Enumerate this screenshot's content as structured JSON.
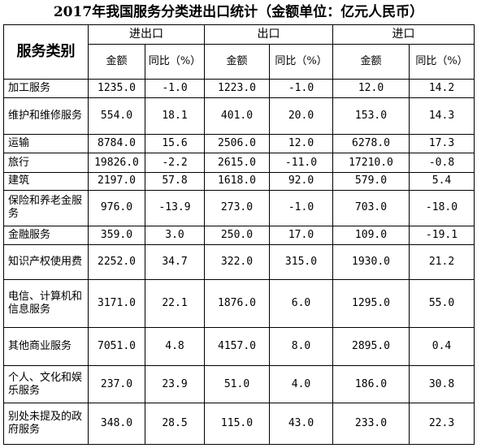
{
  "title": "2017年我国服务分类进出口统计（金额单位：亿元人民币）",
  "header": {
    "category": "服务类别",
    "groups": [
      "进出口",
      "出口",
      "进口"
    ],
    "amount": "金额",
    "yoy": "同比（%）"
  },
  "rows": [
    {
      "category": "加工服务",
      "total_amount": "1235.0",
      "total_yoy": "-1.0",
      "export_amount": "1223.0",
      "export_yoy": "-1.0",
      "import_amount": "12.0",
      "import_yoy": "14.2"
    },
    {
      "category": "维护和维修服务",
      "total_amount": "554.0",
      "total_yoy": "18.1",
      "export_amount": "401.0",
      "export_yoy": "20.0",
      "import_amount": "153.0",
      "import_yoy": "14.3"
    },
    {
      "category": "运输",
      "total_amount": "8784.0",
      "total_yoy": "15.6",
      "export_amount": "2506.0",
      "export_yoy": "12.0",
      "import_amount": "6278.0",
      "import_yoy": "17.3"
    },
    {
      "category": "旅行",
      "total_amount": "19826.0",
      "total_yoy": "-2.2",
      "export_amount": "2615.0",
      "export_yoy": "-11.0",
      "import_amount": "17210.0",
      "import_yoy": "-0.8"
    },
    {
      "category": "建筑",
      "total_amount": "2197.0",
      "total_yoy": "57.8",
      "export_amount": "1618.0",
      "export_yoy": "92.0",
      "import_amount": "579.0",
      "import_yoy": "5.4"
    },
    {
      "category": "保险和养老金服务",
      "total_amount": "976.0",
      "total_yoy": "-13.9",
      "export_amount": "273.0",
      "export_yoy": "-1.0",
      "import_amount": "703.0",
      "import_yoy": "-18.0"
    },
    {
      "category": "金融服务",
      "total_amount": "359.0",
      "total_yoy": "3.0",
      "export_amount": "250.0",
      "export_yoy": "17.0",
      "import_amount": "109.0",
      "import_yoy": "-19.1"
    },
    {
      "category": "知识产权使用费",
      "total_amount": "2252.0",
      "total_yoy": "34.7",
      "export_amount": "322.0",
      "export_yoy": "315.0",
      "import_amount": "1930.0",
      "import_yoy": "21.2"
    },
    {
      "category": "电信、计算机和信息服务",
      "total_amount": "3171.0",
      "total_yoy": "22.1",
      "export_amount": "1876.0",
      "export_yoy": "6.0",
      "import_amount": "1295.0",
      "import_yoy": "55.0"
    },
    {
      "category": "其他商业服务",
      "total_amount": "7051.0",
      "total_yoy": "4.8",
      "export_amount": "4157.0",
      "export_yoy": "8.0",
      "import_amount": "2895.0",
      "import_yoy": "0.4"
    },
    {
      "category": "个人、文化和娱乐服务",
      "total_amount": "237.0",
      "total_yoy": "23.9",
      "export_amount": "51.0",
      "export_yoy": "4.0",
      "import_amount": "186.0",
      "import_yoy": "30.8"
    },
    {
      "category": "别处未提及的政府服务",
      "total_amount": "348.0",
      "total_yoy": "28.5",
      "export_amount": "115.0",
      "export_yoy": "43.0",
      "import_amount": "233.0",
      "import_yoy": "22.3"
    }
  ]
}
